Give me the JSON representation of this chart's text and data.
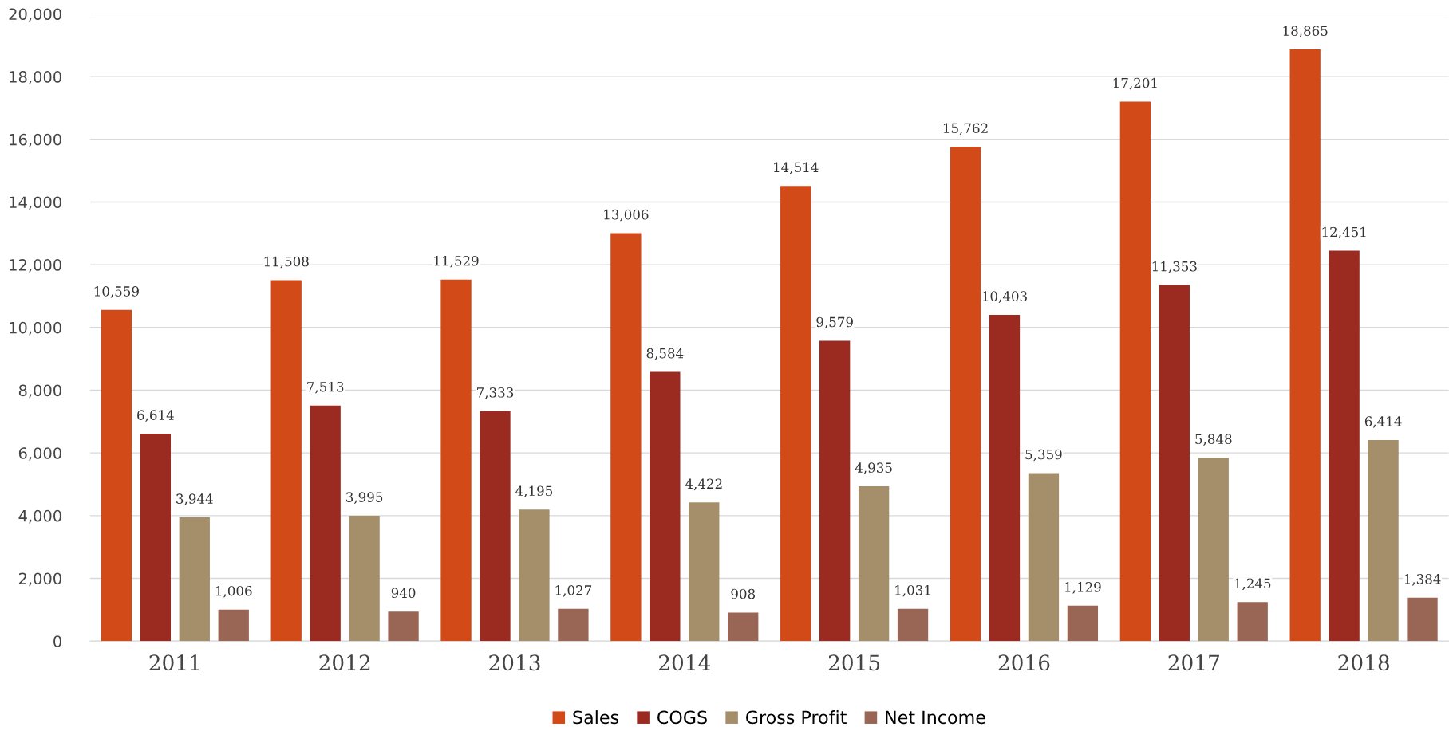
{
  "chart_data": {
    "type": "bar",
    "categories": [
      "2011",
      "2012",
      "2013",
      "2014",
      "2015",
      "2016",
      "2017",
      "2018"
    ],
    "series": [
      {
        "name": "Sales",
        "color": "#d24a18",
        "values": [
          10559,
          11508,
          11529,
          13006,
          14514,
          15762,
          17201,
          18865
        ],
        "value_labels": [
          "10,559",
          "11,508",
          "11,529",
          "13,006",
          "14,514",
          "15,762",
          "17,201",
          "18,865"
        ]
      },
      {
        "name": "COGS",
        "color": "#9b2b20",
        "values": [
          6614,
          7513,
          7333,
          8584,
          9579,
          10403,
          11353,
          12451
        ],
        "value_labels": [
          "6,614",
          "7,513",
          "7,333",
          "8,584",
          "9,579",
          "10,403",
          "11,353",
          "12,451"
        ]
      },
      {
        "name": "Gross Profit",
        "color": "#a48f6a",
        "values": [
          3944,
          3995,
          4195,
          4422,
          4935,
          5359,
          5848,
          6414
        ],
        "value_labels": [
          "3,944",
          "3,995",
          "4,195",
          "4,422",
          "4,935",
          "5,359",
          "5,848",
          "6,414"
        ]
      },
      {
        "name": "Net Income",
        "color": "#996555",
        "values": [
          1006,
          940,
          1027,
          908,
          1031,
          1129,
          1245,
          1384
        ],
        "value_labels": [
          "1,006",
          "940",
          "1,027",
          "908",
          "1,031",
          "1,129",
          "1,245",
          "1,384"
        ]
      }
    ],
    "ylim": [
      0,
      20000
    ],
    "yticks": [
      0,
      {
        "value": 2000,
        "label": "2,000"
      },
      {
        "value": 4000,
        "label": "4,000"
      },
      {
        "value": 6000,
        "label": "6,000"
      },
      {
        "value": 8000,
        "label": "8,000"
      },
      {
        "value": 10000,
        "label": "10,000"
      },
      {
        "value": 12000,
        "label": "12,000"
      },
      {
        "value": 14000,
        "label": "14,000"
      },
      {
        "value": 16000,
        "label": "16,000"
      },
      {
        "value": 18000,
        "label": "18,000"
      },
      {
        "value": 20000,
        "label": "20,000"
      }
    ],
    "grid": "y",
    "legend": "bottom"
  }
}
